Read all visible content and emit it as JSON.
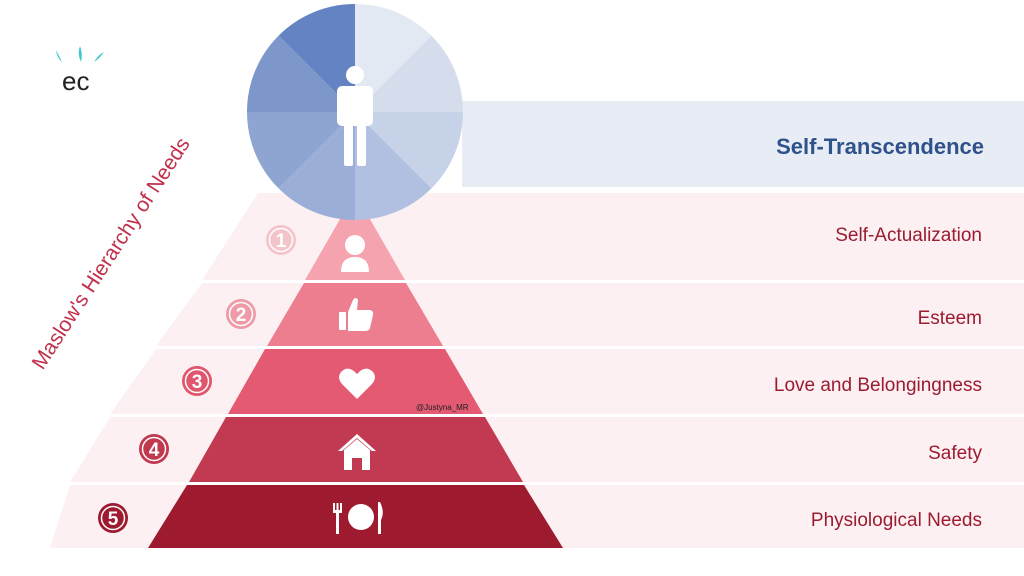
{
  "logo": {
    "text": "ec"
  },
  "side_title": "Maslow's Hierarchy of Needs",
  "watermark": "@Justyna_MR",
  "top_level": {
    "label": "Self-Transcendence",
    "icon": "person-icon"
  },
  "levels": [
    {
      "number": "1",
      "label": "Self-Actualization",
      "icon": "user-icon",
      "color": "#f4a3af"
    },
    {
      "number": "2",
      "label": "Esteem",
      "icon": "thumbs-up-icon",
      "color": "#ec7e90"
    },
    {
      "number": "3",
      "label": "Love and Belongingness",
      "icon": "heart-icon",
      "color": "#e45a72"
    },
    {
      "number": "4",
      "label": "Safety",
      "icon": "house-icon",
      "color": "#c13a51"
    },
    {
      "number": "5",
      "label": "Physiological Needs",
      "icon": "plate-cutlery-icon",
      "color": "#9e1a2e"
    }
  ],
  "colors": {
    "top_band": "#e8edf5",
    "band_fill": "#fdf0f2",
    "circle_blue_dark": "#6383c2",
    "circle_blue_light": "#dfe6f1",
    "number_badge": "#f2b6bf",
    "label_red": "#9b1b30",
    "label_blue": "#2e5289"
  }
}
